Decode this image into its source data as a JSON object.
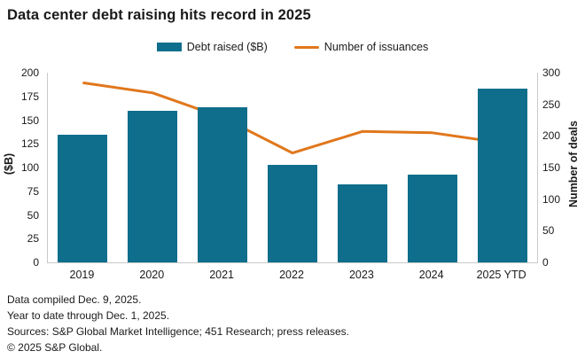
{
  "title": "Data center debt raising hits record in 2025",
  "legend": {
    "bar_label": "Debt raised ($B)",
    "line_label": "Number of issuances"
  },
  "footer": {
    "lines": [
      "Data compiled Dec. 9, 2025.",
      "Year to date through Dec. 1, 2025.",
      "Sources: S&P Global Market Intelligence; 451 Research; press releases.",
      "© 2025 S&P Global."
    ]
  },
  "chart_data": {
    "type": "bar",
    "subtype": "combo-bar-line",
    "title": "Data center debt raising hits record in 2025",
    "categories": [
      "2019",
      "2020",
      "2021",
      "2022",
      "2023",
      "2024",
      "2025 YTD"
    ],
    "series": [
      {
        "name": "Debt raised ($B)",
        "type": "bar",
        "axis": "left",
        "values": [
          135,
          160,
          164,
          103,
          82,
          93,
          183
        ]
      },
      {
        "name": "Number of issuances",
        "type": "line",
        "axis": "right",
        "values": [
          284,
          268,
          229,
          173,
          207,
          205,
          189
        ]
      }
    ],
    "axes": {
      "left": {
        "label": "($B)",
        "min": 0,
        "max": 200,
        "step": 25
      },
      "right": {
        "label": "Number of deals",
        "min": 0,
        "max": 300,
        "step": 50
      }
    },
    "grid": false,
    "legend_position": "top-center",
    "colors": {
      "bar": "#0e6e8c",
      "line": "#e0771c",
      "axis_line": "#c9c9c9"
    }
  }
}
